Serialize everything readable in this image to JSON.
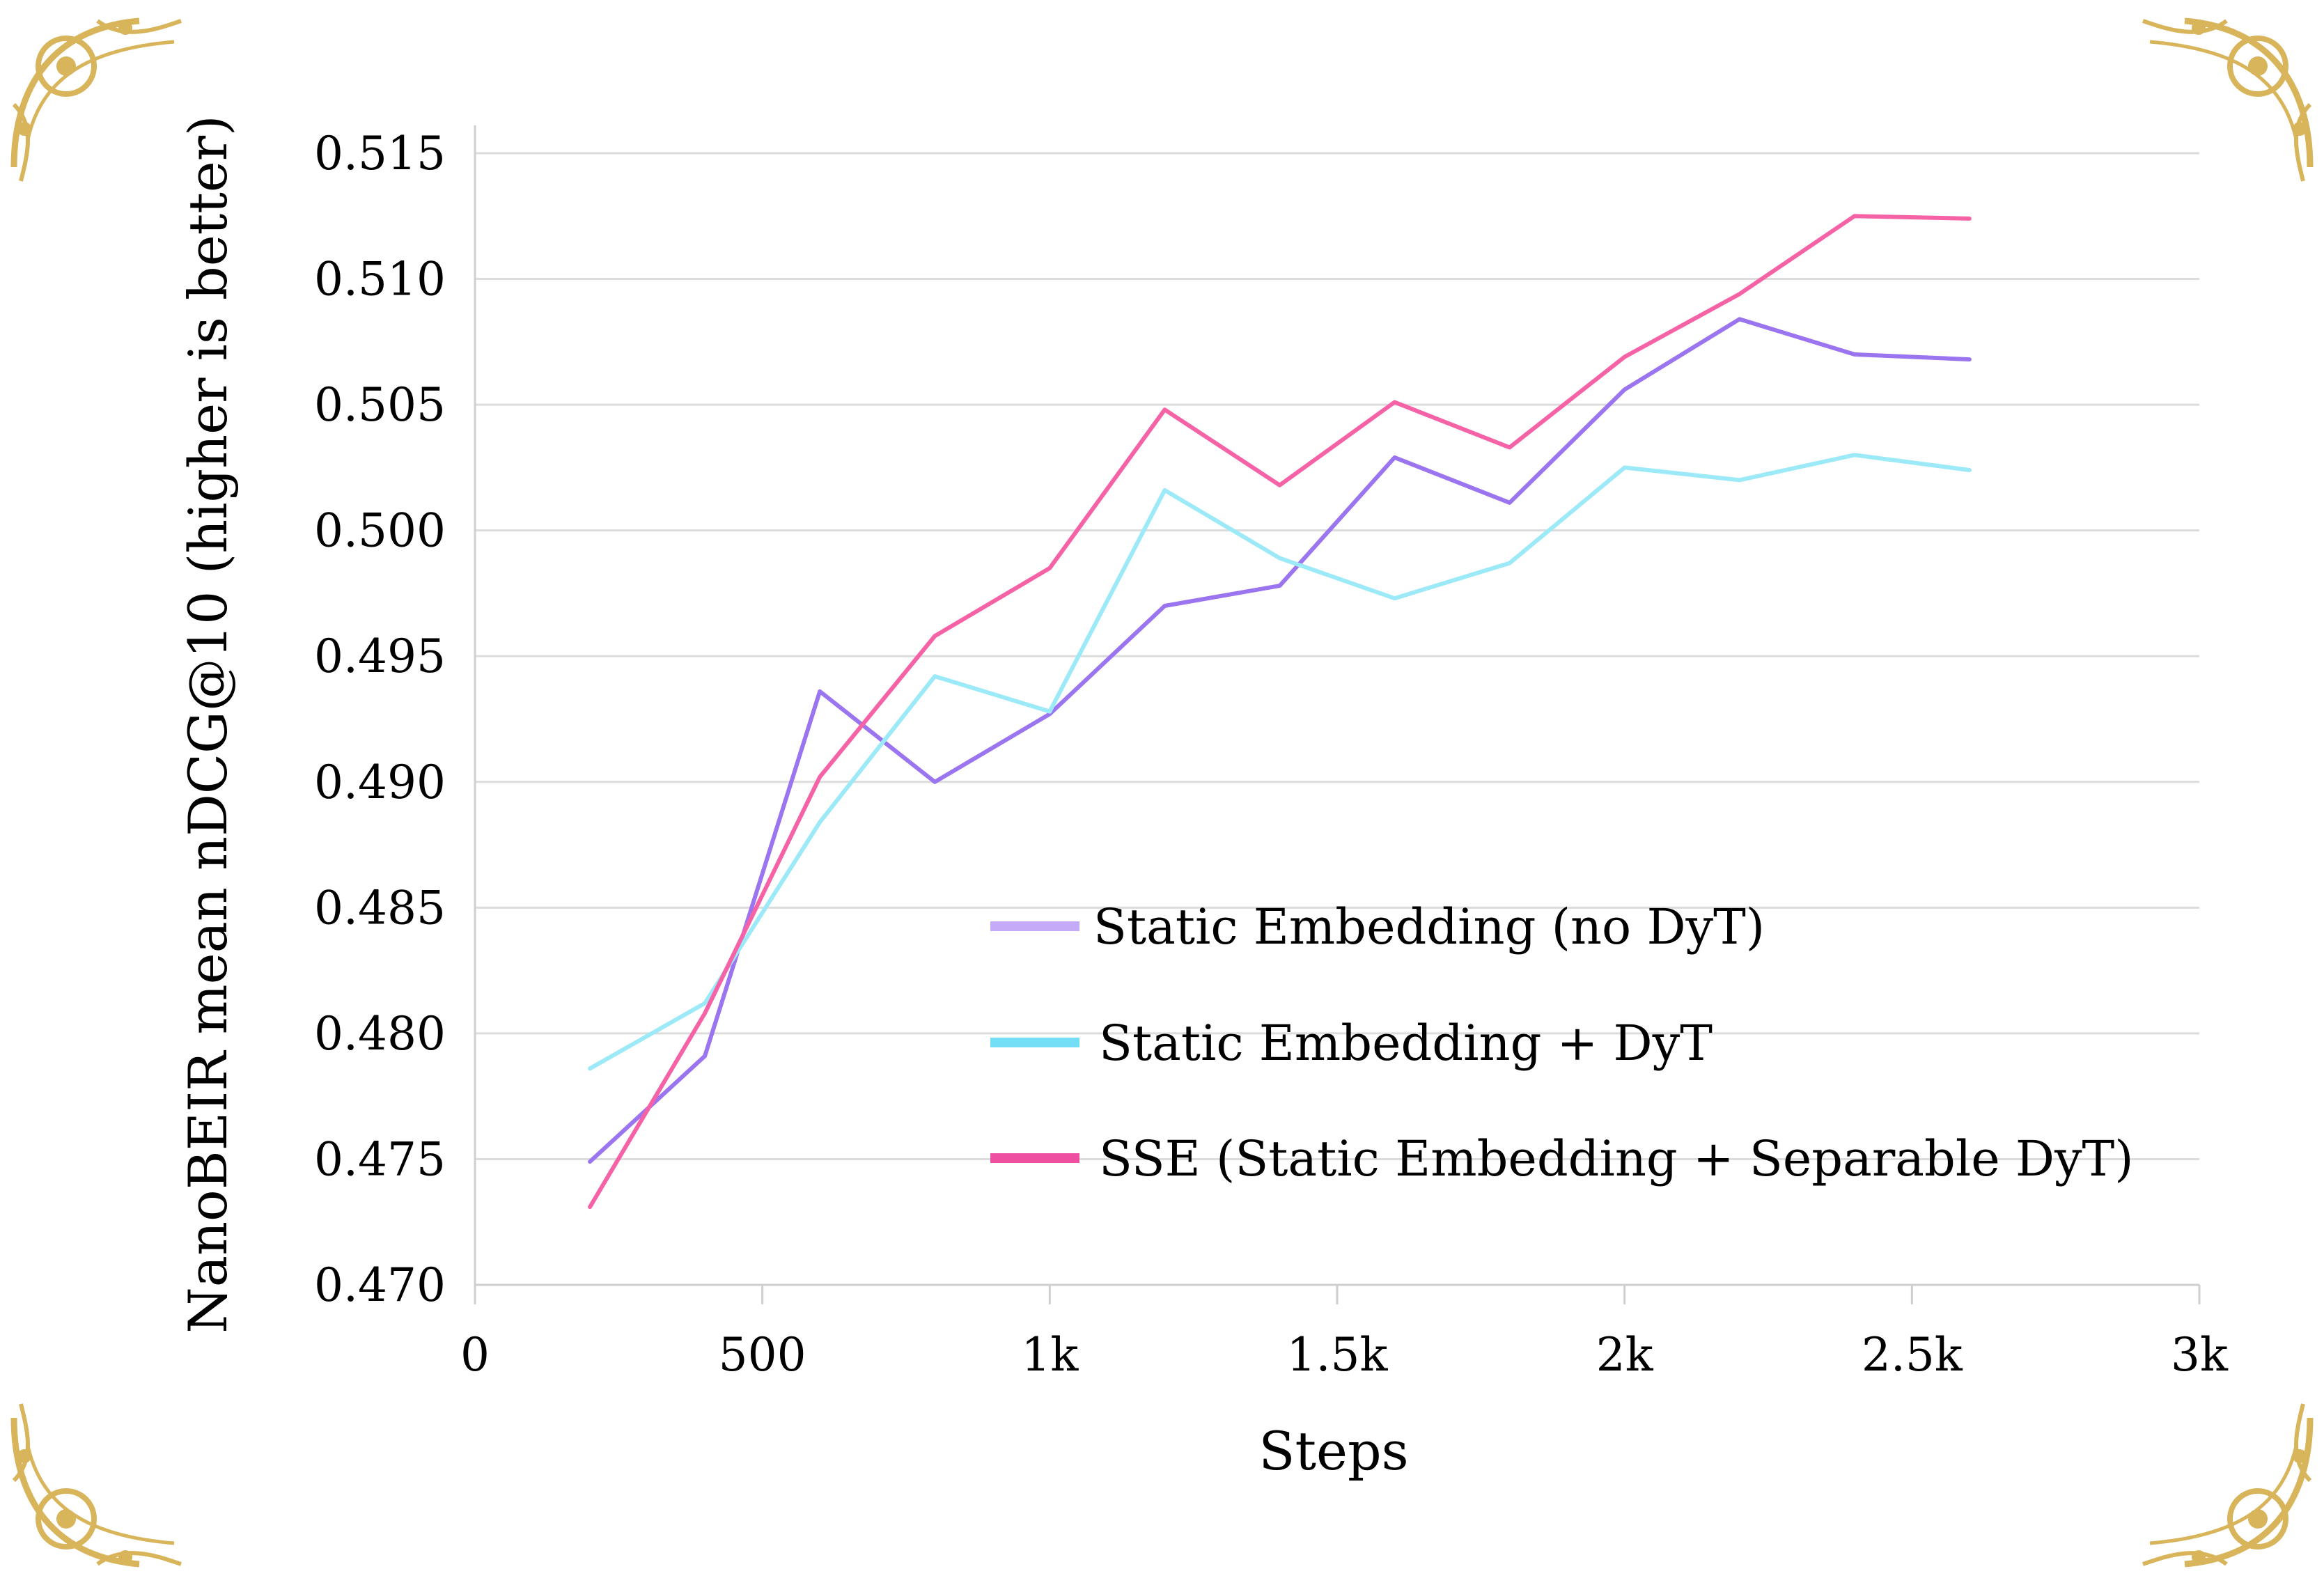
{
  "chart_data": {
    "type": "line",
    "xlabel": "Steps",
    "ylabel": "NanoBEIR mean nDCG@10 (higher is better)",
    "xlim": [
      0,
      3000
    ],
    "ylim": [
      0.47,
      0.515
    ],
    "x_ticks": [
      {
        "value": 0,
        "label": "0"
      },
      {
        "value": 500,
        "label": "500"
      },
      {
        "value": 1000,
        "label": "1k"
      },
      {
        "value": 1500,
        "label": "1.5k"
      },
      {
        "value": 2000,
        "label": "2k"
      },
      {
        "value": 2500,
        "label": "2.5k"
      },
      {
        "value": 3000,
        "label": "3k"
      }
    ],
    "y_ticks": [
      {
        "value": 0.47,
        "label": "0.470"
      },
      {
        "value": 0.475,
        "label": "0.475"
      },
      {
        "value": 0.48,
        "label": "0.480"
      },
      {
        "value": 0.485,
        "label": "0.485"
      },
      {
        "value": 0.49,
        "label": "0.490"
      },
      {
        "value": 0.495,
        "label": "0.495"
      },
      {
        "value": 0.5,
        "label": "0.500"
      },
      {
        "value": 0.505,
        "label": "0.505"
      },
      {
        "value": 0.51,
        "label": "0.510"
      },
      {
        "value": 0.515,
        "label": "0.515"
      }
    ],
    "grid": "horizontal",
    "legend_position": "lower-right",
    "x": [
      200,
      400,
      600,
      800,
      1000,
      1200,
      1400,
      1600,
      1800,
      2000,
      2200,
      2400,
      2600
    ],
    "series": [
      {
        "name": "Static Embedding (no DyT)",
        "color": "#9b74f0",
        "legend_color": "#c4aaf7",
        "values": [
          0.4749,
          0.4791,
          0.4936,
          0.49,
          0.4927,
          0.497,
          0.4978,
          0.5029,
          0.5011,
          0.5056,
          0.5084,
          0.507,
          0.5068
        ]
      },
      {
        "name": "Static Embedding + DyT",
        "color": "#9ce9f8",
        "legend_color": "#74def6",
        "values": [
          0.4786,
          0.4812,
          0.4884,
          0.4942,
          0.4928,
          0.5016,
          0.4989,
          0.4973,
          0.4987,
          0.5025,
          0.502,
          0.503,
          0.5024
        ]
      },
      {
        "name": "SSE (Static Embedding + Separable DyT)",
        "color": "#f562a6",
        "legend_color": "#ef4fa0",
        "values": [
          0.4731,
          0.4808,
          0.4902,
          0.4958,
          0.4985,
          0.5048,
          0.5018,
          0.5051,
          0.5033,
          0.5069,
          0.5094,
          0.5125,
          0.5124
        ]
      }
    ]
  },
  "decoration": {
    "corner_ornament_color": "#d8b45a"
  }
}
